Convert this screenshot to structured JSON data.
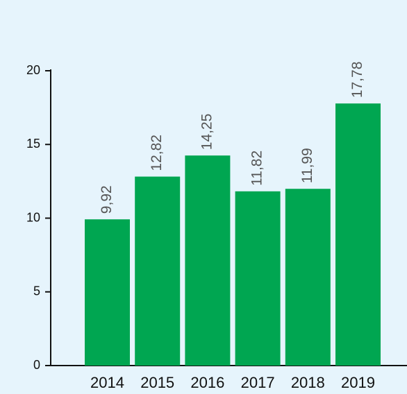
{
  "chart_data": {
    "type": "bar",
    "categories": [
      "2014",
      "2015",
      "2016",
      "2017",
      "2018",
      "2019"
    ],
    "values": [
      9.92,
      12.82,
      14.25,
      11.82,
      11.99,
      17.78
    ],
    "value_labels": [
      "9,92",
      "12,82",
      "14,25",
      "11,82",
      "11,99",
      "17,78"
    ],
    "color": "#00a651",
    "ylim": [
      0,
      20
    ],
    "yticks": [
      0,
      5,
      10,
      15,
      20
    ],
    "grid": false
  }
}
